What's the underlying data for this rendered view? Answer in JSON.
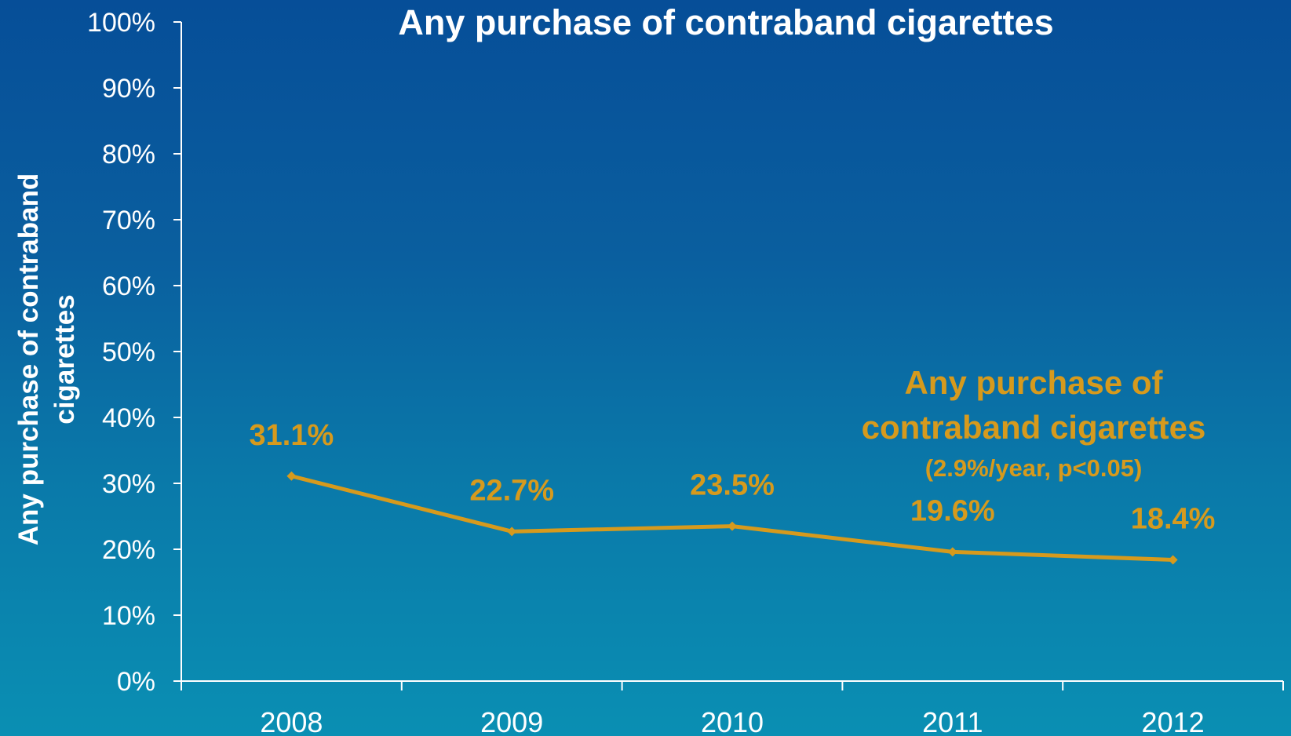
{
  "chart_data": {
    "type": "line",
    "title": "Any purchase of contraband cigarettes",
    "ylabel_lines": [
      "Any purchase of contraband",
      "cigarettes"
    ],
    "xlabel": "",
    "categories": [
      "2008",
      "2009",
      "2010",
      "2011",
      "2012"
    ],
    "yticks": [
      "0%",
      "10%",
      "20%",
      "30%",
      "40%",
      "50%",
      "60%",
      "70%",
      "80%",
      "90%",
      "100%"
    ],
    "ylim": [
      0,
      100
    ],
    "grid": false,
    "series": [
      {
        "name": "Any purchase of contraband cigarettes",
        "values": [
          31.1,
          22.7,
          23.5,
          19.6,
          18.4
        ],
        "data_labels": [
          "31.1%",
          "22.7%",
          "23.5%",
          "19.6%",
          "18.4%"
        ]
      }
    ],
    "annotation": {
      "lines": [
        "Any purchase of",
        "contraband cigarettes"
      ],
      "note": "(2.9%/year, p<0.05)"
    },
    "colors": {
      "series": "#d69a1d",
      "axis": "#ffffff",
      "text": "#ffffff"
    }
  }
}
